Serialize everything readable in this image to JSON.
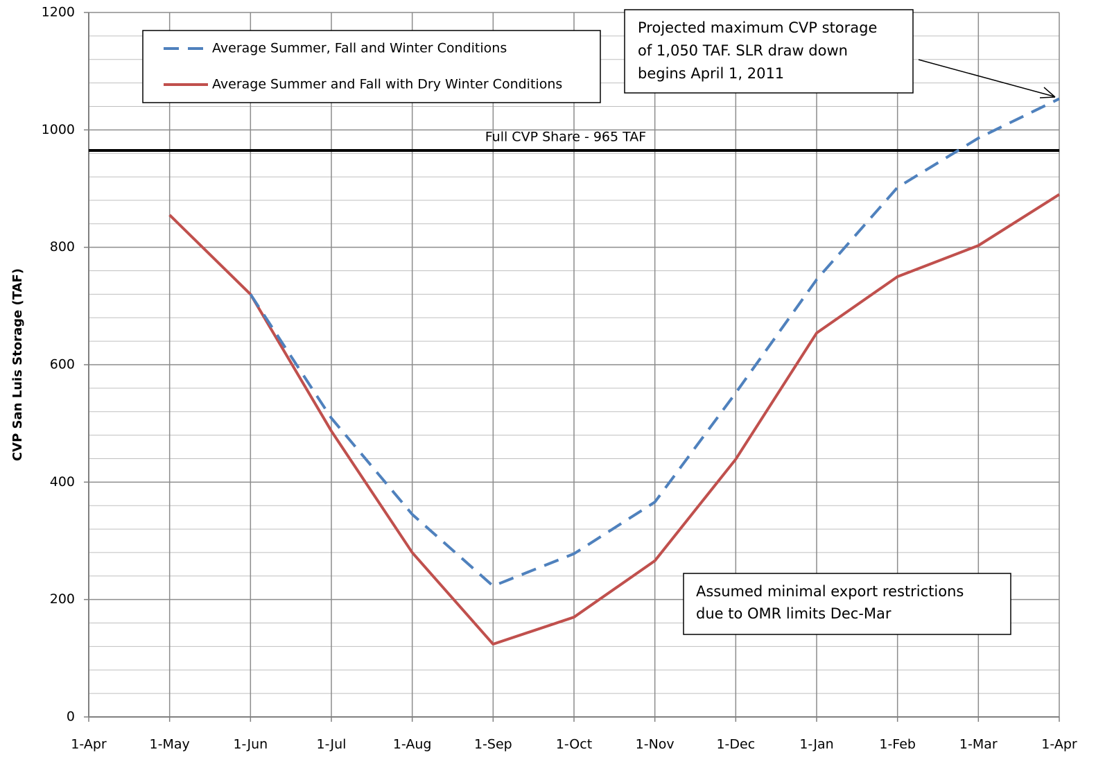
{
  "chart_data": {
    "type": "line",
    "y_label": "CVP San Luis Storage (TAF)",
    "categories": [
      "1-Apr",
      "1-May",
      "1-Jun",
      "1-Jul",
      "1-Aug",
      "1-Sep",
      "1-Oct",
      "1-Nov",
      "1-Dec",
      "1-Jan",
      "1-Feb",
      "1-Mar",
      "1-Apr"
    ],
    "series": [
      {
        "name": "Average Summer, Fall and Winter Conditions",
        "color": "#4f81bd",
        "dashed": true,
        "values": [
          null,
          null,
          720,
          509,
          345,
          223,
          278,
          366,
          552,
          745,
          902,
          986,
          1053
        ]
      },
      {
        "name": "Average Summer and Fall with Dry Winter Conditions",
        "color": "#c0504d",
        "dashed": false,
        "values": [
          null,
          855,
          720,
          487,
          280,
          124,
          170,
          266,
          439,
          654,
          750,
          803,
          890
        ]
      }
    ],
    "ylim": [
      0,
      1200
    ],
    "yticks": [
      0,
      200,
      400,
      600,
      800,
      1000,
      1200
    ],
    "minor_yticks": [
      40,
      80,
      120,
      160,
      240,
      280,
      320,
      360,
      440,
      480,
      520,
      560,
      640,
      680,
      720,
      760,
      840,
      880,
      920,
      960,
      1040,
      1080,
      1120,
      1160
    ],
    "grid": true,
    "reference_line": {
      "value": 965,
      "label": "Full CVP Share - 965 TAF",
      "color": "#000000",
      "label_color": "#ff0000"
    },
    "annotations": [
      {
        "lines": [
          "Projected  maximum CVP storage",
          "of  1,050 TAF.  SLR draw down",
          "begins April 1, 2011"
        ]
      },
      {
        "lines": [
          "Assumed minimal  export restrictions",
          "due to OMR limits Dec-Mar"
        ]
      }
    ]
  }
}
